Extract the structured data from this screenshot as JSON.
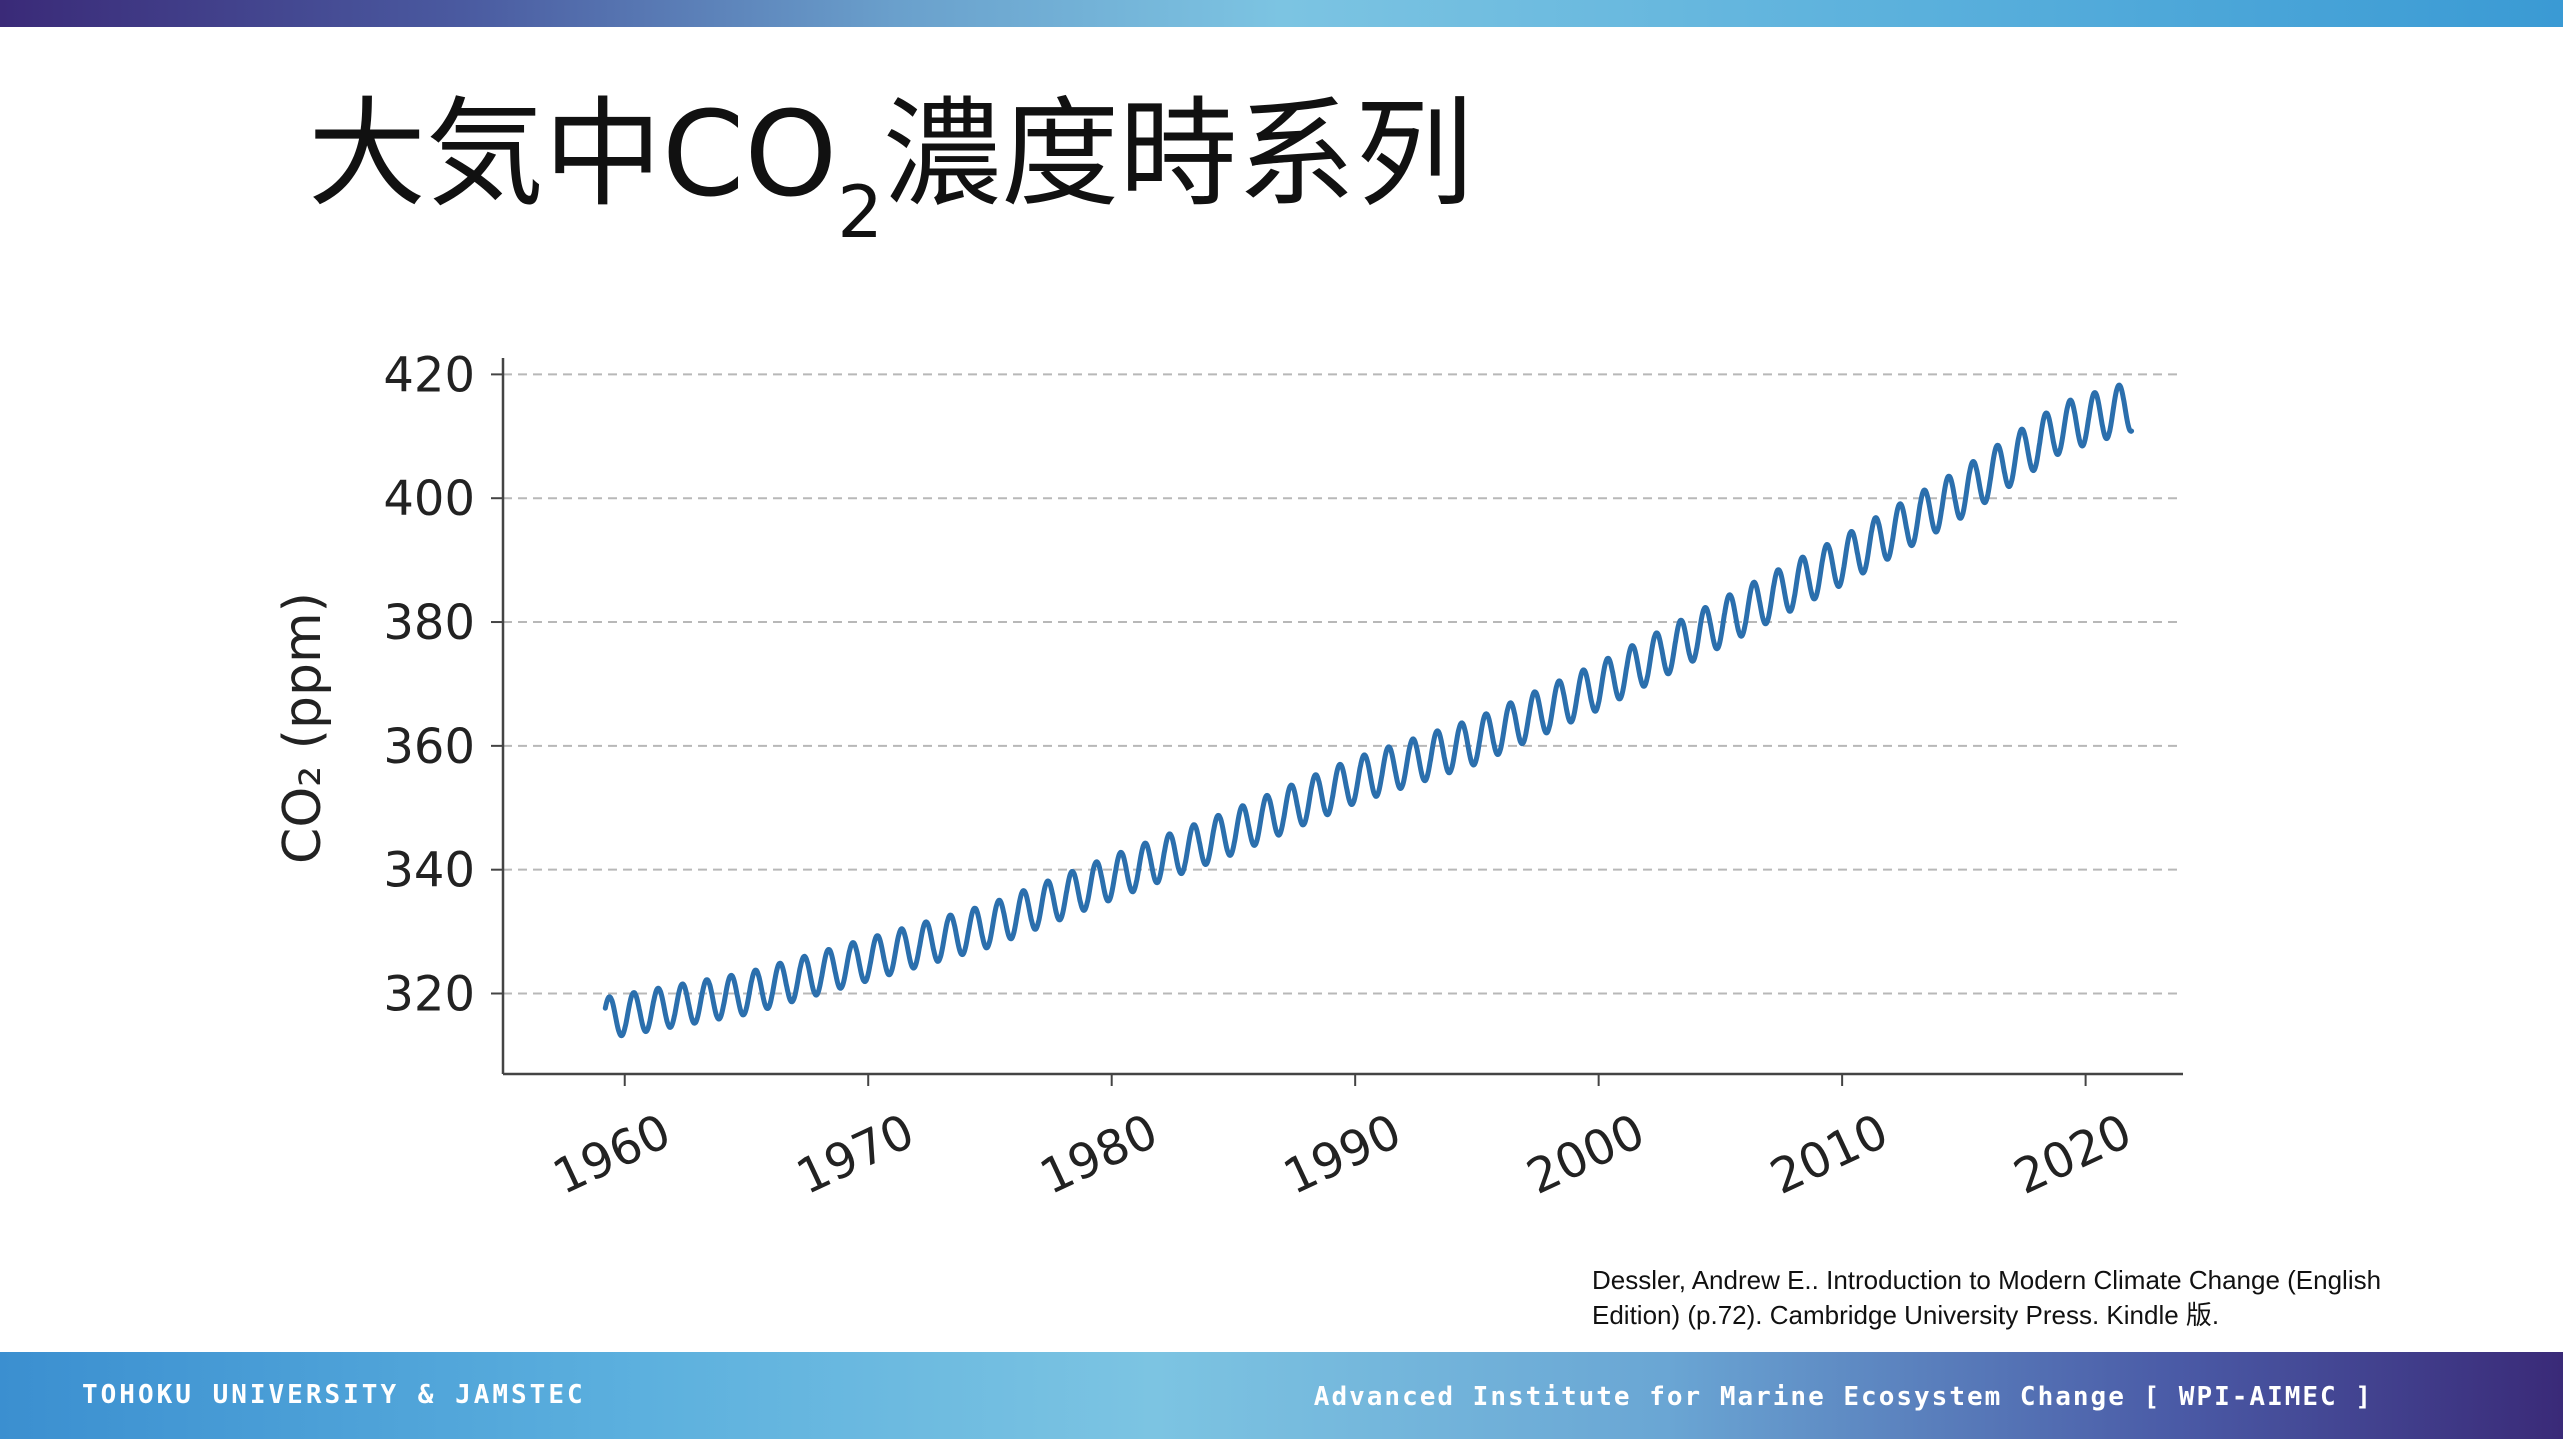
{
  "slide": {
    "title_main": "大気中CO",
    "title_sub": "2",
    "title_rest": "濃度時系列",
    "citation_line1": "Dessler, Andrew E.. Introduction to Modern Climate Change (English",
    "citation_line2": "Edition) (p.72). Cambridge University Press. Kindle 版.",
    "footer_left": "TOHOKU UNIVERSITY & JAMSTEC",
    "footer_right": "Advanced Institute for Marine Ecosystem Change [ WPI-AIMEC ]"
  },
  "chart_data": {
    "type": "line",
    "ylabel": "CO₂ (ppm)",
    "xlabel": "",
    "xlim": [
      1955,
      2024
    ],
    "ylim": [
      307,
      422
    ],
    "xticks": [
      1960,
      1970,
      1980,
      1990,
      2000,
      2010,
      2020
    ],
    "yticks": [
      320,
      340,
      360,
      380,
      400,
      420
    ],
    "grid": "horizontal dashed",
    "line_color": "#2b6fad",
    "series": [
      {
        "trend": [
          [
            1959,
            315.9
          ],
          [
            1965,
            320.0
          ],
          [
            1970,
            325.5
          ],
          [
            1975,
            331.0
          ],
          [
            1980,
            338.7
          ],
          [
            1985,
            346.1
          ],
          [
            1990,
            354.4
          ],
          [
            1995,
            360.8
          ],
          [
            2000,
            369.6
          ],
          [
            2005,
            379.8
          ],
          [
            2010,
            389.9
          ],
          [
            2015,
            401.0
          ],
          [
            2019,
            411.4
          ],
          [
            2022,
            415.0
          ]
        ],
        "seasonal_amplitude_ppm": 3.3,
        "x_start": 1959.2,
        "x_end": 2021.9
      }
    ]
  }
}
